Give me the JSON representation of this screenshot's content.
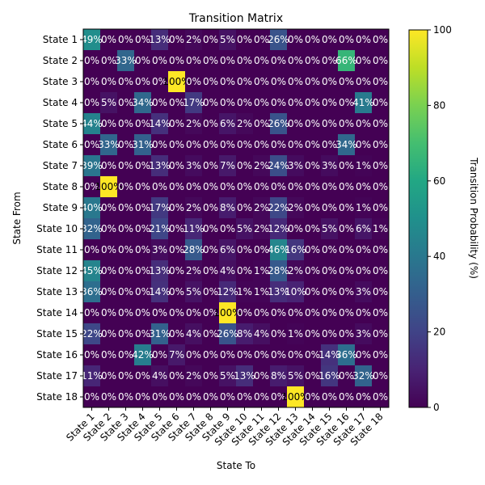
{
  "chart_data": {
    "type": "heatmap",
    "title": "Transition Matrix",
    "xlabel": "State To",
    "ylabel": "State From",
    "colorbar_label": "Transition Probability (%)",
    "colormap": "viridis",
    "vmin": 0,
    "vmax": 100,
    "colorbar_ticks": [
      "0",
      "20",
      "40",
      "60",
      "80",
      "100"
    ],
    "x_categories": [
      "State 1",
      "State 2",
      "State 3",
      "State 4",
      "State 5",
      "State 6",
      "State 7",
      "State 8",
      "State 9",
      "State 10",
      "State 11",
      "State 12",
      "State 13",
      "State 14",
      "State 15",
      "State 16",
      "State 17",
      "State 18"
    ],
    "y_categories": [
      "State 1",
      "State 2",
      "State 3",
      "State 4",
      "State 5",
      "State 6",
      "State 7",
      "State 8",
      "State 9",
      "State 10",
      "State 11",
      "State 12",
      "State 13",
      "State 14",
      "State 15",
      "State 16",
      "State 17",
      "State 18"
    ],
    "values": [
      [
        49,
        0,
        0,
        0,
        13,
        0,
        2,
        0,
        5,
        0,
        0,
        26,
        0,
        0,
        0,
        0,
        0,
        0
      ],
      [
        0,
        0,
        33,
        0,
        0,
        0,
        0,
        0,
        0,
        0,
        0,
        0,
        0,
        0,
        0,
        66,
        0,
        0
      ],
      [
        0,
        0,
        0,
        0,
        0,
        100,
        0,
        0,
        0,
        0,
        0,
        0,
        0,
        0,
        0,
        0,
        0,
        0
      ],
      [
        0,
        5,
        0,
        34,
        0,
        0,
        17,
        0,
        0,
        0,
        0,
        0,
        0,
        0,
        0,
        0,
        41,
        0
      ],
      [
        44,
        0,
        0,
        0,
        14,
        0,
        2,
        0,
        6,
        2,
        0,
        26,
        0,
        0,
        0,
        0,
        0,
        0
      ],
      [
        0,
        33,
        0,
        31,
        0,
        0,
        0,
        0,
        0,
        0,
        0,
        0,
        0,
        0,
        0,
        34,
        0,
        0
      ],
      [
        39,
        0,
        0,
        0,
        13,
        0,
        3,
        0,
        7,
        0,
        2,
        24,
        3,
        0,
        3,
        0,
        1,
        0
      ],
      [
        0,
        100,
        0,
        0,
        0,
        0,
        0,
        0,
        0,
        0,
        0,
        0,
        0,
        0,
        0,
        0,
        0,
        0
      ],
      [
        40,
        0,
        0,
        0,
        17,
        0,
        2,
        0,
        8,
        0,
        2,
        22,
        2,
        0,
        0,
        0,
        1,
        0
      ],
      [
        32,
        0,
        0,
        0,
        21,
        0,
        11,
        0,
        0,
        5,
        2,
        12,
        0,
        0,
        5,
        0,
        6,
        1
      ],
      [
        0,
        0,
        0,
        0,
        3,
        0,
        28,
        0,
        6,
        0,
        0,
        46,
        16,
        0,
        0,
        0,
        0,
        0
      ],
      [
        45,
        0,
        0,
        0,
        13,
        0,
        2,
        0,
        4,
        0,
        1,
        28,
        2,
        0,
        0,
        0,
        0,
        0
      ],
      [
        36,
        0,
        0,
        0,
        14,
        0,
        5,
        0,
        12,
        1,
        1,
        13,
        10,
        0,
        0,
        0,
        3,
        0
      ],
      [
        0,
        0,
        0,
        0,
        0,
        0,
        0,
        0,
        100,
        0,
        0,
        0,
        0,
        0,
        0,
        0,
        0,
        0
      ],
      [
        22,
        0,
        0,
        0,
        31,
        0,
        4,
        0,
        26,
        8,
        4,
        0,
        1,
        0,
        0,
        0,
        3,
        0
      ],
      [
        0,
        0,
        0,
        42,
        0,
        7,
        0,
        0,
        0,
        0,
        0,
        0,
        0,
        0,
        14,
        36,
        0,
        0
      ],
      [
        11,
        0,
        0,
        0,
        4,
        0,
        2,
        0,
        5,
        13,
        0,
        8,
        5,
        0,
        16,
        0,
        32,
        0
      ],
      [
        0,
        0,
        0,
        0,
        0,
        0,
        0,
        0,
        0,
        0,
        0,
        0,
        100,
        0,
        0,
        0,
        0,
        0
      ]
    ]
  }
}
